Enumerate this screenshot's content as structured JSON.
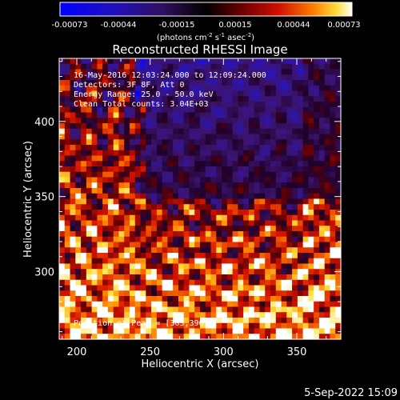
{
  "chart_data": {
    "type": "heatmap",
    "title": "Reconstructed RHESSI Image",
    "xlabel": "Heliocentric X (arcsec)",
    "ylabel": "Heliocentric Y (arcsec)",
    "xlim": [
      188,
      380
    ],
    "ylim": [
      255,
      442
    ],
    "x_ticks": [
      200,
      250,
      300,
      350
    ],
    "y_ticks": [
      300,
      350,
      400
    ],
    "colorbar": {
      "ticks": [
        "-0.00073",
        "-0.00044",
        "-0.00015",
        "0.00015",
        "0.00044",
        "0.00073"
      ],
      "range": [
        -0.00073,
        0.00073
      ],
      "units_line1": "(photons cm",
      "units_sup1": "-2",
      "units_mid1": " s",
      "units_sup2": "-1",
      "units_mid2": " asec",
      "units_sup3": "-2",
      "units_end": ")"
    },
    "annotations": {
      "time_range": "16-May-2016 12:03:24.000 to 12:09:24.000",
      "detectors": "Detectors: 3F 8F, Att 0",
      "energy": "Energy Range: 25.0 - 50.0 keV",
      "method": "Clean    Total counts: 3.04E+03",
      "peak": "Position of Peak = [303,396]"
    },
    "peak_position": [
      303,
      396
    ],
    "grid": false
  },
  "footer": {
    "date": "5-Sep-2022 15:09"
  }
}
